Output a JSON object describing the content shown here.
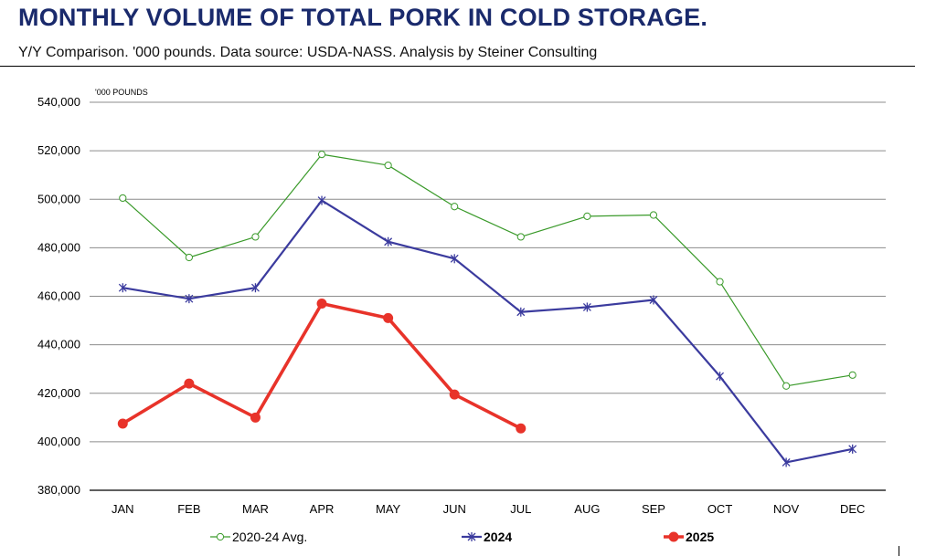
{
  "title": "MONTHLY VOLUME OF TOTAL PORK IN COLD STORAGE.",
  "subtitle": "Y/Y Comparison. '000 pounds.  Data source: USDA-NASS.  Analysis by Steiner Consulting",
  "chart_data": {
    "type": "line",
    "unit_label": "'000 POUNDS",
    "categories": [
      "JAN",
      "FEB",
      "MAR",
      "APR",
      "MAY",
      "JUN",
      "JUL",
      "AUG",
      "SEP",
      "OCT",
      "NOV",
      "DEC"
    ],
    "ylim": [
      380000,
      540000
    ],
    "yticks": [
      380000,
      400000,
      420000,
      440000,
      460000,
      480000,
      500000,
      520000,
      540000
    ],
    "ytick_labels": [
      "380,000",
      "400,000",
      "420,000",
      "440,000",
      "460,000",
      "480,000",
      "500,000",
      "520,000",
      "540,000"
    ],
    "grid": true,
    "legend_placement": "bottom",
    "series": [
      {
        "name": "2020-24 Avg.",
        "color": "#3a9a2a",
        "marker": "open-circle",
        "values": [
          500500,
          476000,
          484500,
          518500,
          514000,
          497000,
          484500,
          493000,
          493500,
          466000,
          423000,
          427500
        ]
      },
      {
        "name": "2024",
        "color": "#3b3b9e",
        "marker": "asterisk",
        "values": [
          463500,
          459000,
          463500,
          499500,
          482500,
          475500,
          453500,
          455500,
          458500,
          427000,
          391500,
          397000
        ]
      },
      {
        "name": "2025",
        "color": "#e8332a",
        "marker": "filled-circle",
        "values": [
          407500,
          424000,
          410000,
          457000,
          451000,
          419500,
          405500,
          null,
          null,
          null,
          null,
          null
        ]
      }
    ]
  }
}
